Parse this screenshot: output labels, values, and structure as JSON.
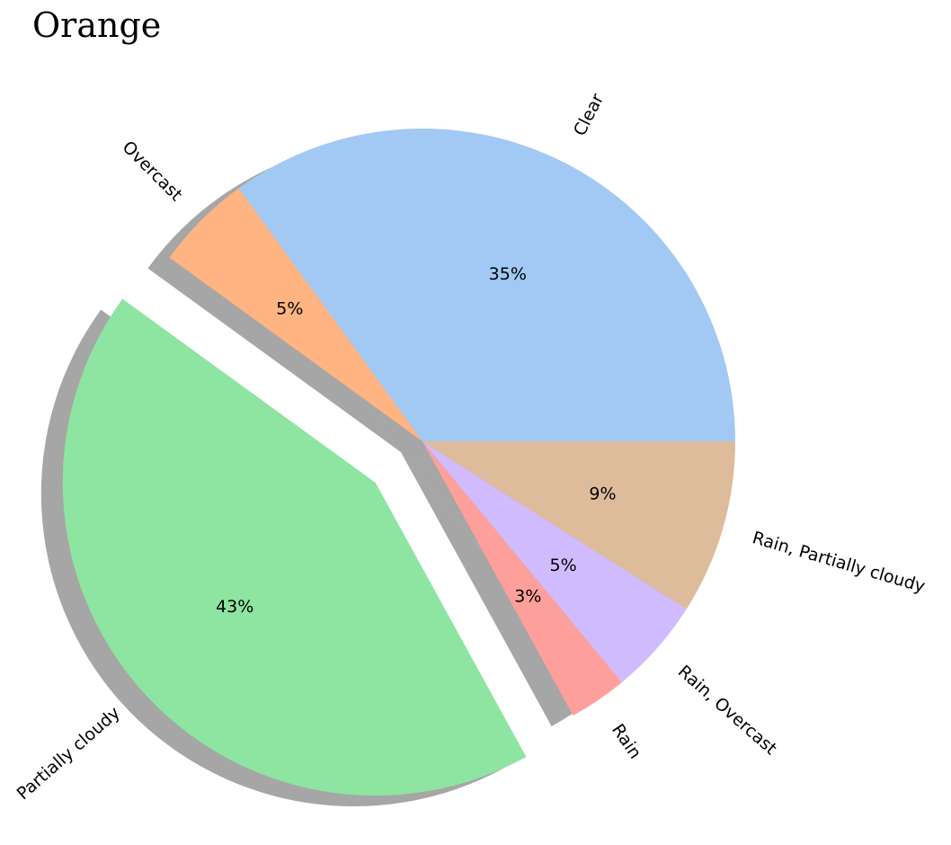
{
  "chart_data": {
    "type": "pie",
    "title": "Orange",
    "slices": [
      {
        "label": "Clear",
        "value": 35,
        "pct_label": "35%",
        "color": "#a1c9f4",
        "explode": false
      },
      {
        "label": "Overcast",
        "value": 5,
        "pct_label": "5%",
        "color": "#ffb482",
        "explode": false
      },
      {
        "label": "Partially cloudy",
        "value": 43,
        "pct_label": "43%",
        "color": "#8de5a1",
        "explode": true
      },
      {
        "label": "Rain",
        "value": 3,
        "pct_label": "3%",
        "color": "#ff9f9b",
        "explode": false
      },
      {
        "label": "Rain, Overcast",
        "value": 5,
        "pct_label": "5%",
        "color": "#d0bbff",
        "explode": false
      },
      {
        "label": "Rain, Partially cloudy",
        "value": 9,
        "pct_label": "9%",
        "color": "#debb9b",
        "explode": false
      }
    ],
    "start_angle": 0,
    "direction": "counterclockwise",
    "shadow": true,
    "rotate_labels": true
  }
}
